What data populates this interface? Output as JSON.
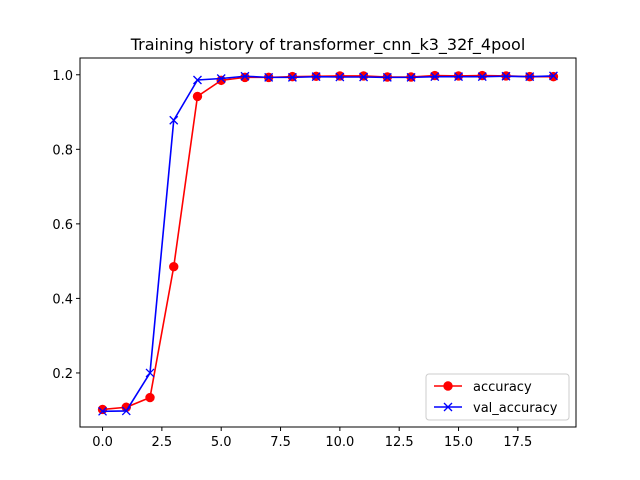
{
  "chart_data": {
    "type": "line",
    "title": "Training history of transformer_cnn_k3_32f_4pool",
    "xlabel": "",
    "ylabel": "",
    "xlim": [
      -0.95,
      19.95
    ],
    "ylim": [
      0.055,
      1.045
    ],
    "x_ticks": [
      0,
      2.5,
      5,
      7.5,
      10,
      12.5,
      15,
      17.5
    ],
    "x_tick_labels": [
      "0.0",
      "2.5",
      "5.0",
      "7.5",
      "10.0",
      "12.5",
      "15.0",
      "17.5"
    ],
    "y_ticks": [
      0.2,
      0.4,
      0.6,
      0.8,
      1.0
    ],
    "y_tick_labels": [
      "0.2",
      "0.4",
      "0.6",
      "0.8",
      "1.0"
    ],
    "grid": false,
    "legend_position": "bottom-right",
    "x": [
      0,
      1,
      2,
      3,
      4,
      5,
      6,
      7,
      8,
      9,
      10,
      11,
      12,
      13,
      14,
      15,
      16,
      17,
      18,
      19
    ],
    "series": [
      {
        "name": "accuracy",
        "color": "#ff0000",
        "marker": "circle",
        "values": [
          0.102,
          0.108,
          0.134,
          0.485,
          0.942,
          0.985,
          0.993,
          0.993,
          0.995,
          0.996,
          0.997,
          0.997,
          0.994,
          0.994,
          0.998,
          0.997,
          0.998,
          0.997,
          0.995,
          0.995
        ]
      },
      {
        "name": "val_accuracy",
        "color": "#0000ff",
        "marker": "x",
        "values": [
          0.097,
          0.098,
          0.2,
          0.878,
          0.986,
          0.99,
          0.996,
          0.993,
          0.993,
          0.995,
          0.994,
          0.994,
          0.993,
          0.993,
          0.995,
          0.995,
          0.995,
          0.996,
          0.995,
          0.997
        ]
      }
    ]
  }
}
